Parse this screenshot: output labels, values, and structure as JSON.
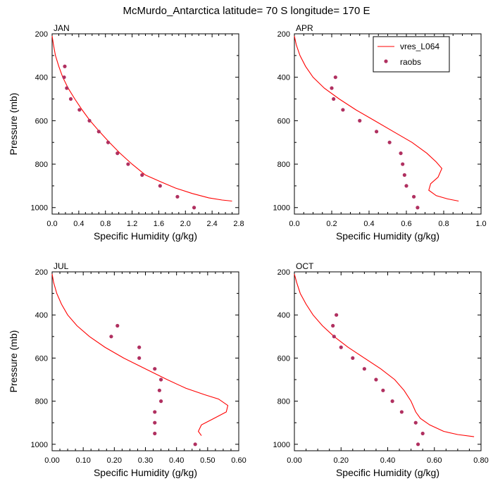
{
  "figure_title": "McMurdo_Antarctica  latitude= 70 S longitude= 170 E",
  "legend": {
    "model": "vres_L064",
    "obs": "raobs"
  },
  "colors": {
    "model": "#ff0000",
    "obs": "#b03060",
    "axis": "#000000"
  },
  "chart_data": [
    {
      "type": "line",
      "panel": "JAN",
      "xlabel": "Specific Humidity (g/kg)",
      "ylabel": "Pressure (mb)",
      "xlim": [
        0,
        2.8
      ],
      "ylim": [
        200,
        1030
      ],
      "y_inverted": true,
      "xticks": [
        "0.0",
        "0.4",
        "0.8",
        "1.2",
        "1.6",
        "2.0",
        "2.4",
        "2.8"
      ],
      "xtick_values": [
        0,
        0.4,
        0.8,
        1.2,
        1.6,
        2.0,
        2.4,
        2.8
      ],
      "yticks": [
        200,
        400,
        600,
        800,
        1000
      ],
      "grid": false,
      "series": [
        {
          "name": "vres_L064",
          "kind": "line",
          "x": [
            0.0,
            0.02,
            0.05,
            0.1,
            0.16,
            0.24,
            0.34,
            0.45,
            0.57,
            0.71,
            0.86,
            1.02,
            1.2,
            1.4,
            1.62,
            1.85,
            2.1,
            2.35,
            2.55,
            2.7
          ],
          "y": [
            210,
            250,
            300,
            350,
            400,
            450,
            500,
            550,
            600,
            650,
            700,
            750,
            800,
            850,
            880,
            910,
            935,
            955,
            965,
            970
          ]
        },
        {
          "name": "raobs",
          "kind": "scatter",
          "x": [
            0.19,
            0.18,
            0.22,
            0.28,
            0.41,
            0.56,
            0.7,
            0.84,
            0.98,
            1.14,
            1.35,
            1.62,
            1.88,
            2.13
          ],
          "y": [
            350,
            400,
            450,
            500,
            550,
            600,
            650,
            700,
            750,
            800,
            850,
            900,
            950,
            1000
          ]
        }
      ]
    },
    {
      "type": "line",
      "panel": "APR",
      "xlabel": "Specific Humidity (g/kg)",
      "ylabel": "",
      "xlim": [
        0,
        1.0
      ],
      "ylim": [
        200,
        1030
      ],
      "y_inverted": true,
      "xticks": [
        "0.0",
        "0.2",
        "0.4",
        "0.6",
        "0.8",
        "1.0"
      ],
      "xtick_values": [
        0,
        0.2,
        0.4,
        0.6,
        0.8,
        1.0
      ],
      "yticks": [
        200,
        400,
        600,
        800,
        1000
      ],
      "grid": false,
      "legend_position": "top-right",
      "series": [
        {
          "name": "vres_L064",
          "kind": "line",
          "x": [
            0.0,
            0.01,
            0.03,
            0.06,
            0.1,
            0.16,
            0.24,
            0.33,
            0.43,
            0.53,
            0.63,
            0.71,
            0.76,
            0.79,
            0.77,
            0.73,
            0.72,
            0.76,
            0.82,
            0.88
          ],
          "y": [
            210,
            250,
            300,
            350,
            400,
            450,
            500,
            550,
            600,
            650,
            700,
            750,
            790,
            820,
            860,
            890,
            920,
            945,
            960,
            970
          ]
        },
        {
          "name": "raobs",
          "kind": "scatter",
          "x": [
            0.22,
            0.2,
            0.21,
            0.26,
            0.35,
            0.44,
            0.51,
            0.57,
            0.58,
            0.59,
            0.6,
            0.64,
            0.66
          ],
          "y": [
            400,
            450,
            500,
            550,
            600,
            650,
            700,
            750,
            800,
            850,
            900,
            950,
            1000
          ]
        }
      ]
    },
    {
      "type": "line",
      "panel": "JUL",
      "xlabel": "Specific Humidity (g/kg)",
      "ylabel": "Pressure (mb)",
      "xlim": [
        0,
        0.6
      ],
      "ylim": [
        200,
        1030
      ],
      "y_inverted": true,
      "xticks": [
        "0.00",
        "0.10",
        "0.20",
        "0.30",
        "0.40",
        "0.50",
        "0.60"
      ],
      "xtick_values": [
        0,
        0.1,
        0.2,
        0.3,
        0.4,
        0.5,
        0.6
      ],
      "yticks": [
        200,
        400,
        600,
        800,
        1000
      ],
      "grid": false,
      "series": [
        {
          "name": "vres_L064",
          "kind": "line",
          "x": [
            0.0,
            0.005,
            0.015,
            0.03,
            0.05,
            0.08,
            0.12,
            0.17,
            0.23,
            0.3,
            0.37,
            0.43,
            0.49,
            0.535,
            0.565,
            0.56,
            0.52,
            0.48,
            0.47,
            0.48
          ],
          "y": [
            210,
            250,
            300,
            350,
            400,
            450,
            500,
            550,
            600,
            650,
            700,
            740,
            770,
            790,
            820,
            850,
            880,
            910,
            940,
            960
          ]
        },
        {
          "name": "raobs",
          "kind": "scatter",
          "x": [
            0.21,
            0.19,
            0.28,
            0.28,
            0.33,
            0.35,
            0.345,
            0.35,
            0.33,
            0.33,
            0.33,
            0.46
          ],
          "y": [
            450,
            500,
            550,
            600,
            650,
            700,
            750,
            800,
            850,
            900,
            950,
            1000
          ]
        }
      ]
    },
    {
      "type": "line",
      "panel": "OCT",
      "xlabel": "Specific Humidity (g/kg)",
      "ylabel": "",
      "xlim": [
        0,
        0.8
      ],
      "ylim": [
        200,
        1030
      ],
      "y_inverted": true,
      "xticks": [
        "0.00",
        "0.20",
        "0.40",
        "0.60",
        "0.80"
      ],
      "xtick_values": [
        0,
        0.2,
        0.4,
        0.6,
        0.8
      ],
      "yticks": [
        200,
        400,
        600,
        800,
        1000
      ],
      "grid": false,
      "series": [
        {
          "name": "vres_L064",
          "kind": "line",
          "x": [
            0.0,
            0.01,
            0.025,
            0.05,
            0.08,
            0.12,
            0.17,
            0.23,
            0.3,
            0.37,
            0.43,
            0.47,
            0.5,
            0.52,
            0.54,
            0.58,
            0.64,
            0.7,
            0.77
          ],
          "y": [
            210,
            250,
            300,
            350,
            400,
            450,
            500,
            550,
            600,
            650,
            700,
            750,
            800,
            850,
            880,
            910,
            940,
            955,
            965
          ]
        },
        {
          "name": "raobs",
          "kind": "scatter",
          "x": [
            0.18,
            0.165,
            0.17,
            0.2,
            0.25,
            0.3,
            0.35,
            0.38,
            0.42,
            0.46,
            0.52,
            0.55,
            0.53
          ],
          "y": [
            400,
            450,
            500,
            550,
            600,
            650,
            700,
            750,
            800,
            850,
            900,
            950,
            1000
          ]
        }
      ]
    }
  ]
}
